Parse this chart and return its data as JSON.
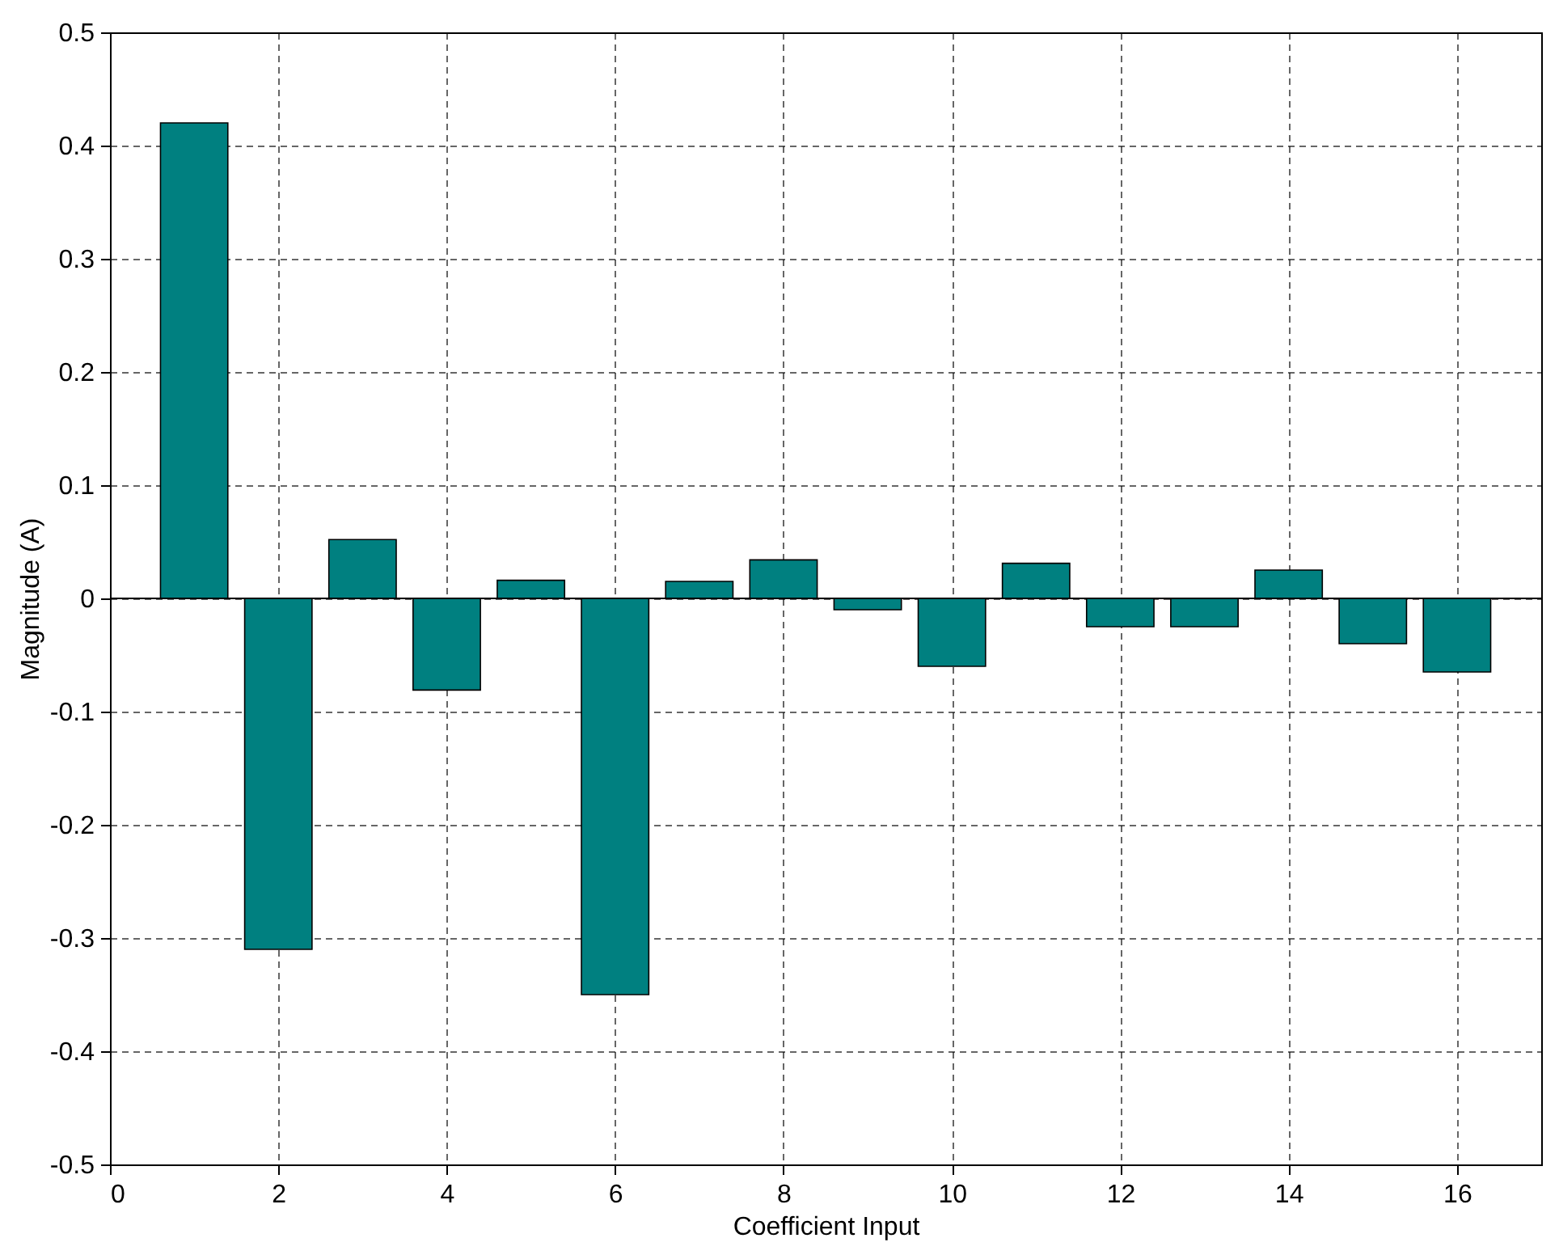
{
  "chart_data": {
    "type": "bar",
    "xlabel": "Coefficient Input",
    "ylabel": "Magnitude (A)",
    "x": [
      1,
      2,
      3,
      4,
      5,
      6,
      7,
      8,
      9,
      10,
      11,
      12,
      13,
      14,
      15,
      16
    ],
    "values": [
      0.42,
      -0.31,
      0.052,
      -0.081,
      0.016,
      -0.35,
      0.015,
      0.034,
      -0.01,
      -0.06,
      0.031,
      -0.025,
      -0.025,
      0.025,
      -0.04,
      -0.065
    ],
    "color": "#008080",
    "xlim": [
      0,
      17
    ],
    "xticks": [
      0,
      2,
      4,
      6,
      8,
      10,
      12,
      14,
      16
    ],
    "ylim": [
      -0.5,
      0.5
    ],
    "yticks": [
      -0.5,
      -0.4,
      -0.3,
      -0.2,
      -0.1,
      0,
      0.1,
      0.2,
      0.3,
      0.4,
      0.5
    ],
    "grid": true,
    "line_style": "dashed",
    "ref_lines": [
      {
        "axis": "y",
        "value": 0
      }
    ]
  }
}
